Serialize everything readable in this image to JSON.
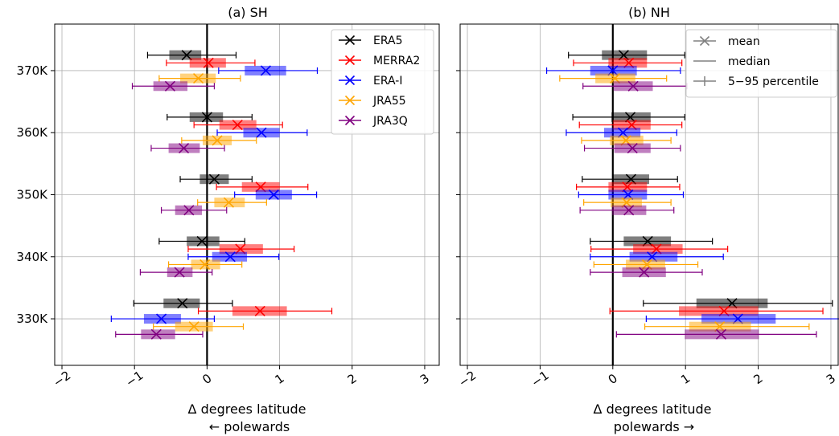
{
  "chart_data": [
    {
      "type": "box",
      "title": "(a) SH",
      "xlabel_line1": "Δ degrees latitude",
      "xlabel_line2": "← polewards",
      "xlim": [
        -2.1,
        3.2
      ],
      "ylim": [
        322.5,
        377.5
      ],
      "xticks": [
        -2,
        -1,
        0,
        1,
        2,
        3
      ],
      "xtick_labels": [
        "−2",
        "−1",
        "0",
        "1",
        "2",
        "3"
      ],
      "yticks": [
        330,
        340,
        350,
        360,
        370
      ],
      "ytick_labels": [
        "330K",
        "340K",
        "350K",
        "360K",
        "370K"
      ],
      "grid": true,
      "legend_position": "top-right",
      "legend": [
        "ERA5",
        "MERRA2",
        "ERA-I",
        "JRA55",
        "JRA3Q"
      ],
      "series": [
        {
          "name": "ERA5",
          "color": "#000000",
          "offset": 2.5,
          "points": [
            {
              "level": 370,
              "mean": -0.28,
              "q25": -0.52,
              "q75": -0.08,
              "p5": -0.82,
              "p95": 0.4
            },
            {
              "level": 360,
              "mean": 0.0,
              "q25": -0.24,
              "q75": 0.22,
              "p5": -0.55,
              "p95": 0.62
            },
            {
              "level": 350,
              "mean": 0.1,
              "q25": -0.1,
              "q75": 0.3,
              "p5": -0.37,
              "p95": 0.62
            },
            {
              "level": 340,
              "mean": -0.07,
              "q25": -0.28,
              "q75": 0.17,
              "p5": -0.66,
              "p95": 0.52
            },
            {
              "level": 330,
              "mean": -0.34,
              "q25": -0.6,
              "q75": -0.1,
              "p5": -1.01,
              "p95": 0.35
            }
          ]
        },
        {
          "name": "MERRA2",
          "color": "#ff0000",
          "offset": 1.25,
          "points": [
            {
              "level": 370,
              "mean": 0.02,
              "q25": -0.24,
              "q75": 0.26,
              "p5": -0.56,
              "p95": 0.66
            },
            {
              "level": 360,
              "mean": 0.42,
              "q25": 0.17,
              "q75": 0.68,
              "p5": -0.18,
              "p95": 1.04
            },
            {
              "level": 350,
              "mean": 0.74,
              "q25": 0.48,
              "q75": 1.0,
              "p5": 0.13,
              "p95": 1.39
            },
            {
              "level": 340,
              "mean": 0.46,
              "q25": 0.17,
              "q75": 0.77,
              "p5": -0.26,
              "p95": 1.2
            },
            {
              "level": 330,
              "mean": 0.73,
              "q25": 0.35,
              "q75": 1.1,
              "p5": -0.12,
              "p95": 1.72
            }
          ]
        },
        {
          "name": "ERA-I",
          "color": "#0000ff",
          "offset": 0,
          "points": [
            {
              "level": 370,
              "mean": 0.81,
              "q25": 0.52,
              "q75": 1.09,
              "p5": 0.16,
              "p95": 1.52
            },
            {
              "level": 360,
              "mean": 0.75,
              "q25": 0.5,
              "q75": 1.0,
              "p5": 0.14,
              "p95": 1.38
            },
            {
              "level": 350,
              "mean": 0.92,
              "q25": 0.67,
              "q75": 1.17,
              "p5": 0.38,
              "p95": 1.51
            },
            {
              "level": 340,
              "mean": 0.32,
              "q25": 0.07,
              "q75": 0.55,
              "p5": -0.26,
              "p95": 0.99
            },
            {
              "level": 330,
              "mean": -0.63,
              "q25": -0.87,
              "q75": -0.36,
              "p5": -1.32,
              "p95": 0.1
            }
          ]
        },
        {
          "name": "JRA55",
          "color": "#ffa500",
          "offset": -1.25,
          "points": [
            {
              "level": 370,
              "mean": -0.12,
              "q25": -0.37,
              "q75": 0.12,
              "p5": -0.66,
              "p95": 0.46
            },
            {
              "level": 360,
              "mean": 0.14,
              "q25": -0.06,
              "q75": 0.34,
              "p5": -0.35,
              "p95": 0.68
            },
            {
              "level": 350,
              "mean": 0.3,
              "q25": 0.1,
              "q75": 0.52,
              "p5": -0.13,
              "p95": 0.82
            },
            {
              "level": 340,
              "mean": -0.03,
              "q25": -0.22,
              "q75": 0.18,
              "p5": -0.53,
              "p95": 0.48
            },
            {
              "level": 330,
              "mean": -0.18,
              "q25": -0.44,
              "q75": 0.08,
              "p5": -0.74,
              "p95": 0.5
            }
          ]
        },
        {
          "name": "JRA3Q",
          "color": "#800080",
          "offset": -2.5,
          "points": [
            {
              "level": 370,
              "mean": -0.51,
              "q25": -0.74,
              "q75": -0.27,
              "p5": -1.03,
              "p95": 0.1
            },
            {
              "level": 360,
              "mean": -0.32,
              "q25": -0.53,
              "q75": -0.1,
              "p5": -0.77,
              "p95": 0.24
            },
            {
              "level": 350,
              "mean": -0.25,
              "q25": -0.44,
              "q75": -0.07,
              "p5": -0.63,
              "p95": 0.27
            },
            {
              "level": 340,
              "mean": -0.38,
              "q25": -0.55,
              "q75": -0.2,
              "p5": -0.92,
              "p95": 0.07
            },
            {
              "level": 330,
              "mean": -0.7,
              "q25": -0.91,
              "q75": -0.44,
              "p5": -1.26,
              "p95": -0.06
            }
          ]
        }
      ]
    },
    {
      "type": "box",
      "title": "(b) NH",
      "xlabel_line1": "Δ degrees latitude",
      "xlabel_line2": "polewards →",
      "xlim": [
        -2.1,
        3.1
      ],
      "ylim": [
        322.5,
        377.5
      ],
      "xticks": [
        -2,
        -1,
        0,
        1,
        2,
        3
      ],
      "xtick_labels": [
        "−2",
        "−1",
        "0",
        "1",
        "2",
        "3"
      ],
      "yticks": [
        330,
        340,
        350,
        360,
        370
      ],
      "grid": true,
      "legend_position": "top-right",
      "legend": [
        "mean",
        "median",
        "5−95 percentile"
      ],
      "series": [
        {
          "name": "ERA5",
          "color": "#000000",
          "offset": 2.5,
          "points": [
            {
              "level": 370,
              "mean": 0.15,
              "q25": -0.15,
              "q75": 0.47,
              "p5": -0.61,
              "p95": 0.99
            },
            {
              "level": 360,
              "mean": 0.24,
              "q25": -0.02,
              "q75": 0.52,
              "p5": -0.55,
              "p95": 0.99
            },
            {
              "level": 350,
              "mean": 0.25,
              "q25": -0.01,
              "q75": 0.5,
              "p5": -0.42,
              "p95": 0.89
            },
            {
              "level": 340,
              "mean": 0.48,
              "q25": 0.15,
              "q75": 0.8,
              "p5": -0.31,
              "p95": 1.37
            },
            {
              "level": 330,
              "mean": 1.64,
              "q25": 1.15,
              "q75": 2.13,
              "p5": 0.42,
              "p95": 3.02
            }
          ]
        },
        {
          "name": "MERRA2",
          "color": "#ff0000",
          "offset": 1.25,
          "points": [
            {
              "level": 370,
              "mean": 0.22,
              "q25": -0.06,
              "q75": 0.47,
              "p5": -0.54,
              "p95": 0.95
            },
            {
              "level": 360,
              "mean": 0.26,
              "q25": 0.0,
              "q75": 0.52,
              "p5": -0.46,
              "p95": 0.95
            },
            {
              "level": 350,
              "mean": 0.2,
              "q25": -0.06,
              "q75": 0.47,
              "p5": -0.5,
              "p95": 0.92
            },
            {
              "level": 340,
              "mean": 0.6,
              "q25": 0.28,
              "q75": 0.96,
              "p5": -0.3,
              "p95": 1.58
            },
            {
              "level": 330,
              "mean": 1.53,
              "q25": 0.91,
              "q75": 2.0,
              "p5": -0.04,
              "p95": 2.89
            }
          ]
        },
        {
          "name": "ERA-I",
          "color": "#0000ff",
          "offset": 0,
          "points": [
            {
              "level": 370,
              "mean": 0.0,
              "q25": -0.31,
              "q75": 0.33,
              "p5": -0.91,
              "p95": 0.93
            },
            {
              "level": 360,
              "mean": 0.14,
              "q25": -0.12,
              "q75": 0.38,
              "p5": -0.64,
              "p95": 0.88
            },
            {
              "level": 350,
              "mean": 0.21,
              "q25": -0.06,
              "q75": 0.47,
              "p5": -0.47,
              "p95": 0.97
            },
            {
              "level": 340,
              "mean": 0.54,
              "q25": 0.23,
              "q75": 0.89,
              "p5": -0.31,
              "p95": 1.52
            },
            {
              "level": 330,
              "mean": 1.72,
              "q25": 1.22,
              "q75": 2.24,
              "p5": 0.46,
              "p95": 3.15
            }
          ]
        },
        {
          "name": "JRA55",
          "color": "#ffa500",
          "offset": -1.25,
          "points": [
            {
              "level": 370,
              "mean": 0.03,
              "q25": -0.24,
              "q75": 0.31,
              "p5": -0.73,
              "p95": 0.74
            },
            {
              "level": 360,
              "mean": 0.18,
              "q25": -0.04,
              "q75": 0.42,
              "p5": -0.43,
              "p95": 0.8
            },
            {
              "level": 350,
              "mean": 0.19,
              "q25": -0.03,
              "q75": 0.4,
              "p5": -0.4,
              "p95": 0.8
            },
            {
              "level": 340,
              "mean": 0.47,
              "q25": 0.18,
              "q75": 0.72,
              "p5": -0.26,
              "p95": 1.17
            },
            {
              "level": 330,
              "mean": 1.47,
              "q25": 1.05,
              "q75": 1.9,
              "p5": 0.44,
              "p95": 2.7
            }
          ]
        },
        {
          "name": "JRA3Q",
          "color": "#800080",
          "offset": -2.5,
          "points": [
            {
              "level": 370,
              "mean": 0.28,
              "q25": 0.01,
              "q75": 0.55,
              "p5": -0.41,
              "p95": 1.02
            },
            {
              "level": 360,
              "mean": 0.27,
              "q25": 0.02,
              "q75": 0.52,
              "p5": -0.39,
              "p95": 0.93
            },
            {
              "level": 350,
              "mean": 0.22,
              "q25": -0.01,
              "q75": 0.46,
              "p5": -0.45,
              "p95": 0.84
            },
            {
              "level": 340,
              "mean": 0.43,
              "q25": 0.13,
              "q75": 0.73,
              "p5": -0.31,
              "p95": 1.23
            },
            {
              "level": 330,
              "mean": 1.49,
              "q25": 0.99,
              "q75": 2.01,
              "p5": 0.05,
              "p95": 2.8
            }
          ]
        }
      ]
    }
  ]
}
